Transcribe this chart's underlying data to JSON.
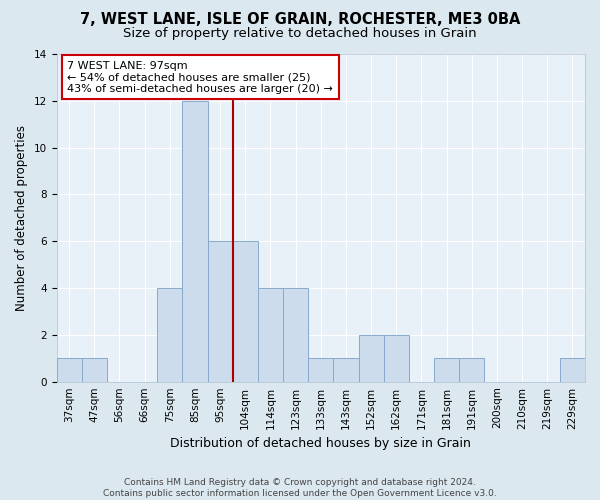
{
  "title1": "7, WEST LANE, ISLE OF GRAIN, ROCHESTER, ME3 0BA",
  "title2": "Size of property relative to detached houses in Grain",
  "xlabel": "Distribution of detached houses by size in Grain",
  "ylabel": "Number of detached properties",
  "categories": [
    "37sqm",
    "47sqm",
    "56sqm",
    "66sqm",
    "75sqm",
    "85sqm",
    "95sqm",
    "104sqm",
    "114sqm",
    "123sqm",
    "133sqm",
    "143sqm",
    "152sqm",
    "162sqm",
    "171sqm",
    "181sqm",
    "191sqm",
    "200sqm",
    "210sqm",
    "219sqm",
    "229sqm"
  ],
  "values": [
    1,
    1,
    0,
    0,
    4,
    12,
    6,
    6,
    4,
    4,
    1,
    1,
    2,
    2,
    0,
    1,
    1,
    0,
    0,
    0,
    1
  ],
  "bar_color": "#ccdcec",
  "bar_edge_color": "#88aacc",
  "vline_color": "#aa0000",
  "vline_x_index": 6.5,
  "annotation_text": "7 WEST LANE: 97sqm\n← 54% of detached houses are smaller (25)\n43% of semi-detached houses are larger (20) →",
  "annotation_box_facecolor": "#ffffff",
  "annotation_box_edgecolor": "#cc0000",
  "ylim": [
    0,
    14
  ],
  "yticks": [
    0,
    2,
    4,
    6,
    8,
    10,
    12,
    14
  ],
  "bg_color": "#dce8f0",
  "plot_bg_color": "#e8f0f8",
  "footer1": "Contains HM Land Registry data © Crown copyright and database right 2024.",
  "footer2": "Contains public sector information licensed under the Open Government Licence v3.0.",
  "title1_fontsize": 10.5,
  "title2_fontsize": 9.5,
  "xlabel_fontsize": 9,
  "ylabel_fontsize": 8.5,
  "tick_fontsize": 7.5,
  "annotation_fontsize": 8,
  "footer_fontsize": 6.5
}
